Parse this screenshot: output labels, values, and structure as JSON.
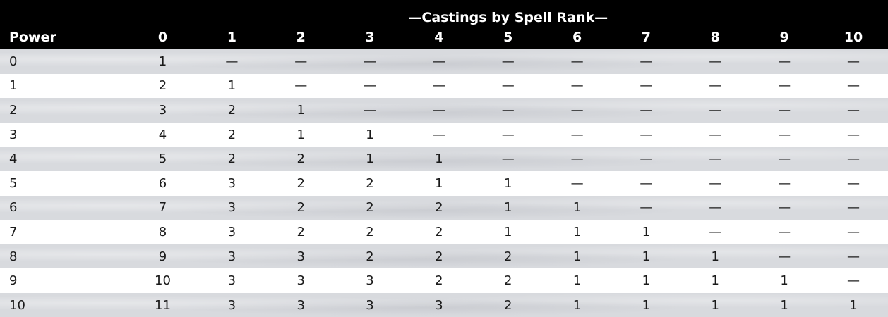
{
  "table": {
    "group_header": "—Castings by Spell Rank—",
    "power_header": "Power",
    "rank_headers": [
      "0",
      "1",
      "2",
      "3",
      "4",
      "5",
      "6",
      "7",
      "8",
      "9",
      "10"
    ],
    "rows": [
      {
        "power": "0",
        "cells": [
          "1",
          "—",
          "—",
          "—",
          "—",
          "—",
          "—",
          "—",
          "—",
          "—",
          "—"
        ]
      },
      {
        "power": "1",
        "cells": [
          "2",
          "1",
          "—",
          "—",
          "—",
          "—",
          "—",
          "—",
          "—",
          "—",
          "—"
        ]
      },
      {
        "power": "2",
        "cells": [
          "3",
          "2",
          "1",
          "—",
          "—",
          "—",
          "—",
          "—",
          "—",
          "—",
          "—"
        ]
      },
      {
        "power": "3",
        "cells": [
          "4",
          "2",
          "1",
          "1",
          "—",
          "—",
          "—",
          "—",
          "—",
          "—",
          "—"
        ]
      },
      {
        "power": "4",
        "cells": [
          "5",
          "2",
          "2",
          "1",
          "1",
          "—",
          "—",
          "—",
          "—",
          "—",
          "—"
        ]
      },
      {
        "power": "5",
        "cells": [
          "6",
          "3",
          "2",
          "2",
          "1",
          "1",
          "—",
          "—",
          "—",
          "—",
          "—"
        ]
      },
      {
        "power": "6",
        "cells": [
          "7",
          "3",
          "2",
          "2",
          "2",
          "1",
          "1",
          "—",
          "—",
          "—",
          "—"
        ]
      },
      {
        "power": "7",
        "cells": [
          "8",
          "3",
          "2",
          "2",
          "2",
          "1",
          "1",
          "1",
          "—",
          "—",
          "—"
        ]
      },
      {
        "power": "8",
        "cells": [
          "9",
          "3",
          "3",
          "2",
          "2",
          "2",
          "1",
          "1",
          "1",
          "—",
          "—"
        ]
      },
      {
        "power": "9",
        "cells": [
          "10",
          "3",
          "3",
          "3",
          "2",
          "2",
          "1",
          "1",
          "1",
          "1",
          "—"
        ]
      },
      {
        "power": "10",
        "cells": [
          "11",
          "3",
          "3",
          "3",
          "3",
          "2",
          "1",
          "1",
          "1",
          "1",
          "1"
        ]
      }
    ]
  },
  "colors": {
    "header_bg": "#000000",
    "header_text": "#ffffff",
    "stripe_bg": "#d8dade",
    "plain_bg": "#ffffff",
    "cell_text": "#1a1a1a"
  }
}
